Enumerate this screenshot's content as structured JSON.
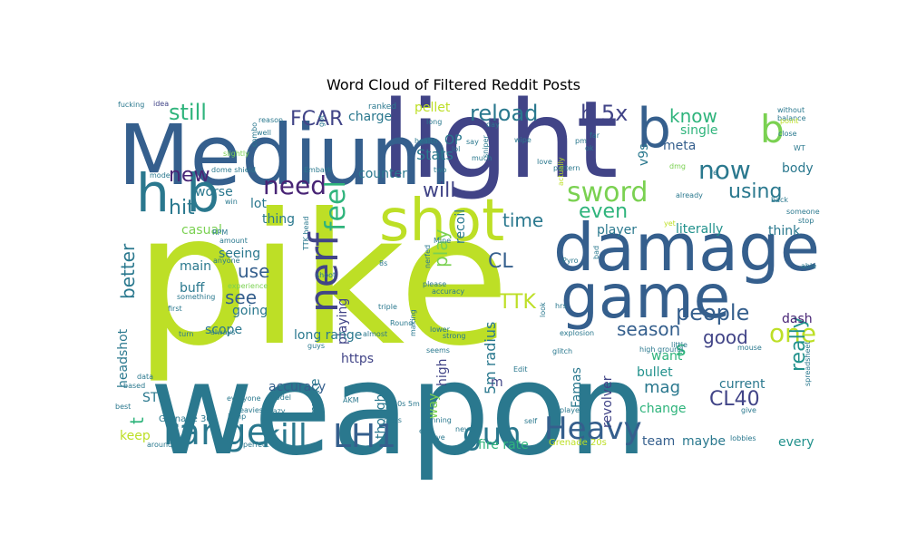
{
  "figure": {
    "title": "Word Cloud of Filtered Reddit Posts"
  },
  "palette": {
    "yellow_green": "#bddf26",
    "green": "#2fb47c",
    "light_green": "#7ad151",
    "teal": "#21918c",
    "blue_teal": "#2a788e",
    "blue": "#355f8d",
    "dark_blue": "#414487",
    "purple": "#482475",
    "dark_purple": "#440154",
    "yellow": "#fde725"
  },
  "words": [
    {
      "text": "pike",
      "color": "#bddf26"
    },
    {
      "text": "weapon",
      "color": "#2a788e"
    },
    {
      "text": "light",
      "color": "#414487"
    },
    {
      "text": "Medium",
      "color": "#355f8d"
    },
    {
      "text": "damage",
      "color": "#355f8d"
    },
    {
      "text": "game",
      "color": "#355f8d"
    },
    {
      "text": "shot",
      "color": "#bddf26"
    },
    {
      "text": "b",
      "color": "#355f8d"
    },
    {
      "text": "h b",
      "color": "#2a788e"
    },
    {
      "text": "b",
      "color": "#7ad151"
    },
    {
      "text": "nerf",
      "color": "#414487"
    },
    {
      "text": "range",
      "color": "#2a788e"
    },
    {
      "text": "Heavy",
      "color": "#355f8d"
    },
    {
      "text": "kill",
      "color": "#2a788e"
    },
    {
      "text": "LH1",
      "color": "#355f8d"
    },
    {
      "text": "gun",
      "color": "#2a788e"
    },
    {
      "text": "sword",
      "color": "#7ad151"
    },
    {
      "text": "now",
      "color": "#2a788e"
    },
    {
      "text": "need",
      "color": "#482475"
    },
    {
      "text": "feel",
      "color": "#2fb47c"
    },
    {
      "text": "people",
      "color": "#355f8d"
    },
    {
      "text": "one",
      "color": "#bddf26"
    },
    {
      "text": "reload",
      "color": "#2a788e"
    },
    {
      "text": "h 5x",
      "color": "#414487"
    },
    {
      "text": "still",
      "color": "#2fb47c"
    },
    {
      "text": "FCAR",
      "color": "#414487"
    },
    {
      "text": "new",
      "color": "#482475"
    },
    {
      "text": "hit",
      "color": "#2a788e"
    },
    {
      "text": "using",
      "color": "#2a788e"
    },
    {
      "text": "know",
      "color": "#2fb47c"
    },
    {
      "text": "even",
      "color": "#2fb47c"
    },
    {
      "text": "will",
      "color": "#414487"
    },
    {
      "text": "time",
      "color": "#2a788e"
    },
    {
      "text": "CL",
      "color": "#355f8d"
    },
    {
      "text": "play",
      "color": "#7ad151"
    },
    {
      "text": "TTK",
      "color": "#bddf26"
    },
    {
      "text": "season",
      "color": "#355f8d"
    },
    {
      "text": "good",
      "color": "#414487"
    },
    {
      "text": "really",
      "color": "#21918c"
    },
    {
      "text": "CL40",
      "color": "#414487"
    },
    {
      "text": "see",
      "color": "#355f8d"
    },
    {
      "text": "use",
      "color": "#355f8d"
    },
    {
      "text": "better",
      "color": "#2a788e"
    },
    {
      "text": "mag",
      "color": "#2a788e"
    },
    {
      "text": "bullet",
      "color": "#21918c"
    },
    {
      "text": "player",
      "color": "#2a788e"
    },
    {
      "text": "Stats",
      "color": "#2a788e"
    },
    {
      "text": "s",
      "color": "#2fb47c"
    },
    {
      "text": "dash",
      "color": "#482475"
    },
    {
      "text": "meta",
      "color": "#355f8d"
    },
    {
      "text": "5m radius",
      "color": "#2a788e"
    },
    {
      "text": "accuracy",
      "color": "#355f8d"
    },
    {
      "text": "every",
      "color": "#21918c"
    },
    {
      "text": "maybe",
      "color": "#2a788e"
    },
    {
      "text": "team",
      "color": "#355f8d"
    },
    {
      "text": "going",
      "color": "#2a788e"
    },
    {
      "text": "buff",
      "color": "#2a788e"
    },
    {
      "text": "scope",
      "color": "#2a788e"
    },
    {
      "text": "seeing",
      "color": "#2a788e"
    },
    {
      "text": "literally",
      "color": "#21918c"
    },
    {
      "text": "playing",
      "color": "#414487"
    },
    {
      "text": "t",
      "color": "#2fb47c"
    },
    {
      "text": "make",
      "color": "#2a788e"
    },
    {
      "text": "way",
      "color": "#7ad151"
    },
    {
      "text": "high",
      "color": "#414487"
    },
    {
      "text": "revolver",
      "color": "#414487"
    },
    {
      "text": "Famas",
      "color": "#2a788e"
    },
    {
      "text": "want",
      "color": "#2fb47c"
    },
    {
      "text": "change",
      "color": "#2fb47c"
    },
    {
      "text": "current",
      "color": "#2a788e"
    },
    {
      "text": "think",
      "color": "#2a788e"
    },
    {
      "text": "body",
      "color": "#2a788e"
    },
    {
      "text": "single",
      "color": "#2fb47c"
    },
    {
      "text": "headshot",
      "color": "#2a788e"
    },
    {
      "text": "keep",
      "color": "#bddf26"
    },
    {
      "text": "STK",
      "color": "#2a788e"
    },
    {
      "text": "thought",
      "color": "#2a788e"
    },
    {
      "text": "fire rate",
      "color": "#2fb47c"
    },
    {
      "text": "casual",
      "color": "#7ad151"
    },
    {
      "text": "worse",
      "color": "#2a788e"
    },
    {
      "text": "thing",
      "color": "#2a788e"
    },
    {
      "text": "lot",
      "color": "#2a788e"
    },
    {
      "text": "counter",
      "color": "#2a788e"
    },
    {
      "text": "charge",
      "color": "#2a788e"
    },
    {
      "text": "pellet",
      "color": "#bddf26"
    },
    {
      "text": "OP",
      "color": "#2a788e"
    },
    {
      "text": "main",
      "color": "#2a788e"
    },
    {
      "text": "recoil",
      "color": "#2a788e"
    },
    {
      "text": "m",
      "color": "#414487"
    },
    {
      "text": "v9s",
      "color": "#2a788e"
    },
    {
      "text": "long range",
      "color": "#2a788e"
    },
    {
      "text": "https",
      "color": "#414487"
    },
    {
      "text": "Grenade 30s",
      "color": "#2a788e"
    },
    {
      "text": "Grenade 20s",
      "color": "#bddf26"
    },
    {
      "text": "fucking",
      "color": "#2a788e"
    },
    {
      "text": "idea",
      "color": "#414487"
    },
    {
      "text": "reason",
      "color": "#2a788e"
    },
    {
      "text": "ranked",
      "color": "#2a788e"
    },
    {
      "text": "long",
      "color": "#2a788e"
    },
    {
      "text": "day",
      "color": "#2a788e"
    },
    {
      "text": "lol",
      "color": "#2a788e"
    },
    {
      "text": "say",
      "color": "#2a788e"
    },
    {
      "text": "much",
      "color": "#2a788e"
    },
    {
      "text": "sniper",
      "color": "#2a788e"
    },
    {
      "text": "health",
      "color": "#2a788e"
    },
    {
      "text": "love",
      "color": "#2a788e"
    },
    {
      "text": "pattern",
      "color": "#2a788e"
    },
    {
      "text": "actually",
      "color": "#bddf26"
    },
    {
      "text": "without",
      "color": "#2a788e"
    },
    {
      "text": "balance",
      "color": "#2a788e"
    },
    {
      "text": "close",
      "color": "#2a788e"
    },
    {
      "text": "point",
      "color": "#bddf26"
    },
    {
      "text": "WT",
      "color": "#2a788e"
    },
    {
      "text": "mode",
      "color": "#2a788e"
    },
    {
      "text": "dome shield",
      "color": "#2a788e"
    },
    {
      "text": "Embark",
      "color": "#2a788e"
    },
    {
      "text": "combo",
      "color": "#2a788e"
    },
    {
      "text": "slightly",
      "color": "#7ad151"
    },
    {
      "text": "win",
      "color": "#2a788e"
    },
    {
      "text": "well",
      "color": "#2a788e"
    },
    {
      "text": "got",
      "color": "#2a788e"
    },
    {
      "text": "two",
      "color": "#2a788e"
    },
    {
      "text": "dmg",
      "color": "#7ad151"
    },
    {
      "text": "re",
      "color": "#2a788e"
    },
    {
      "text": "already",
      "color": "#2a788e"
    },
    {
      "text": "back",
      "color": "#2a788e"
    },
    {
      "text": "someone",
      "color": "#2a788e"
    },
    {
      "text": "stop",
      "color": "#2a788e"
    },
    {
      "text": "yet",
      "color": "#bddf26"
    },
    {
      "text": "RPM",
      "color": "#2a788e"
    },
    {
      "text": "amount",
      "color": "#2a788e"
    },
    {
      "text": "anyone",
      "color": "#2a788e"
    },
    {
      "text": "experience",
      "color": "#7ad151"
    },
    {
      "text": "something",
      "color": "#2a788e"
    },
    {
      "text": "first",
      "color": "#2a788e"
    },
    {
      "text": "shoot",
      "color": "#2a788e"
    },
    {
      "text": "TTK head",
      "color": "#2a788e"
    },
    {
      "text": "Mine",
      "color": "#2a788e"
    },
    {
      "text": "8s",
      "color": "#2a788e"
    },
    {
      "text": "nerfed",
      "color": "#2a788e"
    },
    {
      "text": "please",
      "color": "#2a788e"
    },
    {
      "text": "accuracy",
      "color": "#2a788e"
    },
    {
      "text": "triple",
      "color": "#2a788e"
    },
    {
      "text": "Round",
      "color": "#2a788e"
    },
    {
      "text": "lower",
      "color": "#2a788e"
    },
    {
      "text": "strong",
      "color": "#2a788e"
    },
    {
      "text": "turn",
      "color": "#2a788e"
    },
    {
      "text": "always",
      "color": "#2a788e"
    },
    {
      "text": "guys",
      "color": "#2a788e"
    },
    {
      "text": "almost",
      "color": "#2a788e"
    },
    {
      "text": "making",
      "color": "#2a788e"
    },
    {
      "text": "seems",
      "color": "#2a788e"
    },
    {
      "text": "running",
      "color": "#2a788e"
    },
    {
      "text": "class",
      "color": "#2a788e"
    },
    {
      "text": "end",
      "color": "#2a788e"
    },
    {
      "text": "never",
      "color": "#2a788e"
    },
    {
      "text": "ve",
      "color": "#2a788e"
    },
    {
      "text": "self",
      "color": "#2a788e"
    },
    {
      "text": "Edit",
      "color": "#2a788e"
    },
    {
      "text": "played",
      "color": "#2a788e"
    },
    {
      "text": "look",
      "color": "#2a788e"
    },
    {
      "text": "high ground",
      "color": "#2a788e"
    },
    {
      "text": "little",
      "color": "#2a788e"
    },
    {
      "text": "glitch",
      "color": "#2a788e"
    },
    {
      "text": "mouse",
      "color": "#2a788e"
    },
    {
      "text": "give",
      "color": "#2a788e"
    },
    {
      "text": "lobbies",
      "color": "#2a788e"
    },
    {
      "text": "around",
      "color": "#2a788e"
    },
    {
      "text": "jump",
      "color": "#2a788e"
    },
    {
      "text": "heavies",
      "color": "#2a788e"
    },
    {
      "text": "crazy",
      "color": "#2a788e"
    },
    {
      "text": "fire",
      "color": "#2a788e"
    },
    {
      "text": "everyone",
      "color": "#2a788e"
    },
    {
      "text": "Model",
      "color": "#2a788e"
    },
    {
      "text": "data",
      "color": "#2a788e"
    },
    {
      "text": "based",
      "color": "#2a788e"
    },
    {
      "text": "best",
      "color": "#2a788e"
    },
    {
      "text": "perfect",
      "color": "#2a788e"
    },
    {
      "text": "explosion",
      "color": "#2a788e"
    },
    {
      "text": "hrs",
      "color": "#2a788e"
    },
    {
      "text": "Pyro",
      "color": "#2a788e"
    },
    {
      "text": "bad",
      "color": "#2a788e"
    },
    {
      "text": "able",
      "color": "#2a788e"
    },
    {
      "text": "spreadsheet",
      "color": "#2a788e"
    },
    {
      "text": "AKM",
      "color": "#2a788e"
    },
    {
      "text": "30s 5m",
      "color": "#2a788e"
    },
    {
      "text": "wipe",
      "color": "#2a788e"
    },
    {
      "text": "pm",
      "color": "#2a788e"
    },
    {
      "text": "far",
      "color": "#2a788e"
    },
    {
      "text": "ok",
      "color": "#2a788e"
    },
    {
      "text": "yikes",
      "color": "#2a788e"
    }
  ]
}
